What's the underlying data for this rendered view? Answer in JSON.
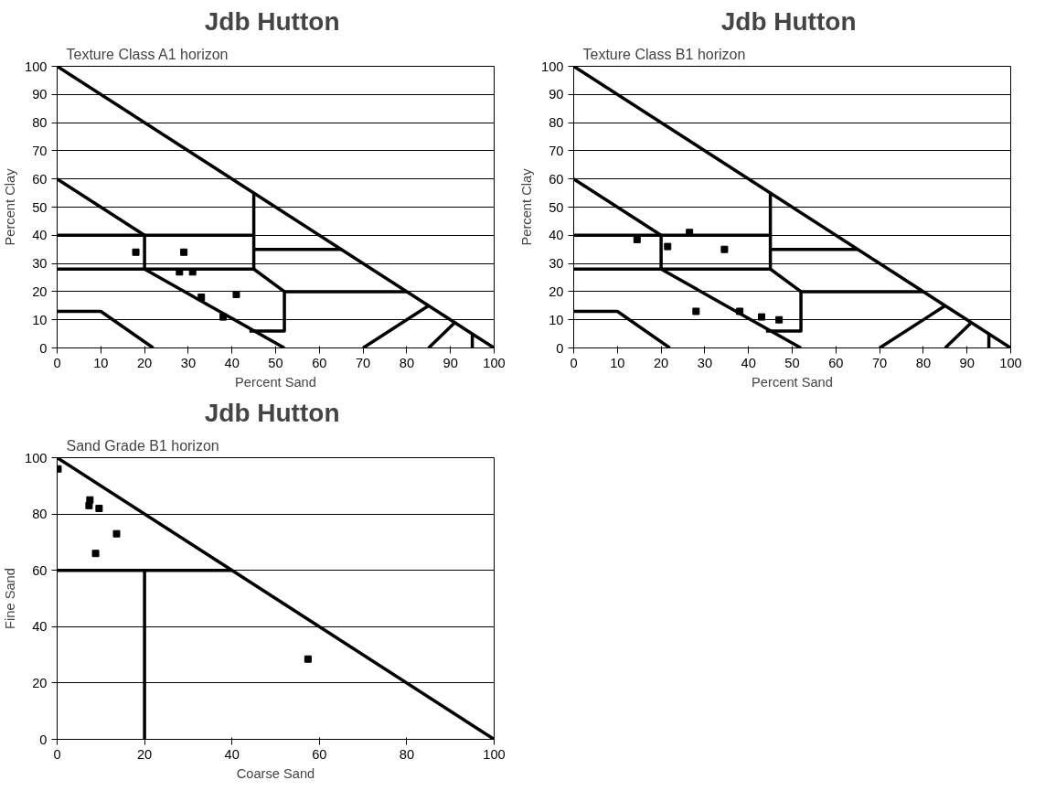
{
  "chart_data": [
    {
      "type": "scatter",
      "title": "Jdb  Hutton",
      "subtitle": "Texture Class   A1 horizon",
      "xlabel": "Percent Sand",
      "ylabel": "Percent Clay",
      "xlim": [
        0,
        100
      ],
      "ylim": [
        0,
        100
      ],
      "xticks": [
        0,
        10,
        20,
        30,
        40,
        50,
        60,
        70,
        80,
        90,
        100
      ],
      "yticks": [
        0,
        10,
        20,
        30,
        40,
        50,
        60,
        70,
        80,
        90,
        100
      ],
      "grid": "y",
      "series": [
        {
          "marker": "square",
          "color": "#000000",
          "x": [
            18,
            29,
            28,
            31,
            33,
            41,
            38
          ],
          "values": [
            34,
            34,
            27,
            27,
            18,
            19,
            11
          ]
        },
        {
          "type": "line",
          "marker": "none",
          "color": "#000000",
          "x": [
            0,
            100
          ],
          "values": [
            100,
            0
          ]
        },
        {
          "type": "line",
          "marker": "none",
          "color": "#000000",
          "x": [
            0,
            20,
            20,
            52
          ],
          "values": [
            60,
            40,
            28,
            0
          ]
        },
        {
          "type": "line",
          "marker": "none",
          "color": "#000000",
          "x": [
            0,
            45
          ],
          "values": [
            40,
            40
          ]
        },
        {
          "type": "line",
          "marker": "none",
          "color": "#000000",
          "x": [
            0,
            45,
            45
          ],
          "values": [
            28,
            28,
            55
          ]
        },
        {
          "type": "line",
          "marker": "none",
          "color": "#000000",
          "x": [
            45,
            65
          ],
          "values": [
            35,
            35
          ]
        },
        {
          "type": "line",
          "marker": "none",
          "color": "#000000",
          "x": [
            45,
            52,
            52,
            44
          ],
          "values": [
            28,
            20,
            6,
            6
          ]
        },
        {
          "type": "line",
          "marker": "none",
          "color": "#000000",
          "x": [
            52,
            80
          ],
          "values": [
            20,
            20
          ]
        },
        {
          "type": "line",
          "marker": "none",
          "color": "#000000",
          "x": [
            0,
            10,
            22
          ],
          "values": [
            13,
            13,
            0
          ]
        },
        {
          "type": "line",
          "marker": "none",
          "color": "#000000",
          "x": [
            70,
            85
          ],
          "values": [
            0,
            15
          ]
        },
        {
          "type": "line",
          "marker": "none",
          "color": "#000000",
          "x": [
            85,
            91
          ],
          "values": [
            0,
            9
          ]
        },
        {
          "type": "line",
          "marker": "none",
          "color": "#000000",
          "x": [
            95,
            95
          ],
          "values": [
            0,
            5
          ]
        }
      ]
    },
    {
      "type": "scatter",
      "title": "Jdb  Hutton",
      "subtitle": "Texture Class   B1 horizon",
      "xlabel": "Percent Sand",
      "ylabel": "Percent Clay",
      "xlim": [
        0,
        100
      ],
      "ylim": [
        0,
        100
      ],
      "xticks": [
        0,
        10,
        20,
        30,
        40,
        50,
        60,
        70,
        80,
        90,
        100
      ],
      "yticks": [
        0,
        10,
        20,
        30,
        40,
        50,
        60,
        70,
        80,
        90,
        100
      ],
      "grid": "y",
      "series": [
        {
          "marker": "square",
          "color": "#000000",
          "x": [
            14.5,
            26.5,
            21.5,
            34.5,
            28,
            38,
            43,
            47
          ],
          "values": [
            38.5,
            41,
            36,
            35,
            13,
            13,
            11,
            10
          ]
        },
        {
          "type": "line",
          "marker": "none",
          "color": "#000000",
          "x": [
            0,
            100
          ],
          "values": [
            100,
            0
          ]
        },
        {
          "type": "line",
          "marker": "none",
          "color": "#000000",
          "x": [
            0,
            20,
            20,
            52
          ],
          "values": [
            60,
            40,
            28,
            0
          ]
        },
        {
          "type": "line",
          "marker": "none",
          "color": "#000000",
          "x": [
            0,
            45
          ],
          "values": [
            40,
            40
          ]
        },
        {
          "type": "line",
          "marker": "none",
          "color": "#000000",
          "x": [
            0,
            45,
            45
          ],
          "values": [
            28,
            28,
            55
          ]
        },
        {
          "type": "line",
          "marker": "none",
          "color": "#000000",
          "x": [
            45,
            65
          ],
          "values": [
            35,
            35
          ]
        },
        {
          "type": "line",
          "marker": "none",
          "color": "#000000",
          "x": [
            45,
            52,
            52,
            44
          ],
          "values": [
            28,
            20,
            6,
            6
          ]
        },
        {
          "type": "line",
          "marker": "none",
          "color": "#000000",
          "x": [
            52,
            80
          ],
          "values": [
            20,
            20
          ]
        },
        {
          "type": "line",
          "marker": "none",
          "color": "#000000",
          "x": [
            0,
            10,
            22
          ],
          "values": [
            13,
            13,
            0
          ]
        },
        {
          "type": "line",
          "marker": "none",
          "color": "#000000",
          "x": [
            70,
            85
          ],
          "values": [
            0,
            15
          ]
        },
        {
          "type": "line",
          "marker": "none",
          "color": "#000000",
          "x": [
            85,
            91
          ],
          "values": [
            0,
            9
          ]
        },
        {
          "type": "line",
          "marker": "none",
          "color": "#000000",
          "x": [
            95,
            95
          ],
          "values": [
            0,
            5
          ]
        }
      ]
    },
    {
      "type": "scatter",
      "title": "Jdb  Hutton",
      "subtitle": "Sand Grade B1 horizon",
      "xlabel": "Coarse Sand",
      "ylabel": "Fine Sand",
      "xlim": [
        0,
        100
      ],
      "ylim": [
        0,
        100
      ],
      "xticks": [
        0,
        20,
        40,
        60,
        80,
        100
      ],
      "yticks": [
        0,
        20,
        40,
        60,
        80,
        100
      ],
      "grid": "y",
      "series": [
        {
          "marker": "square",
          "color": "#000000",
          "x": [
            0.2,
            7.5,
            7.3,
            9.6,
            13.6,
            8.8,
            57.4
          ],
          "values": [
            96,
            85,
            83,
            82,
            73,
            66,
            28.5
          ]
        },
        {
          "type": "line",
          "marker": "none",
          "color": "#000000",
          "x": [
            0,
            100
          ],
          "values": [
            100,
            0
          ]
        },
        {
          "type": "line",
          "marker": "none",
          "color": "#000000",
          "x": [
            0,
            40
          ],
          "values": [
            60,
            60
          ]
        },
        {
          "type": "line",
          "marker": "none",
          "color": "#000000",
          "x": [
            20,
            20
          ],
          "values": [
            60,
            0
          ]
        }
      ]
    }
  ]
}
